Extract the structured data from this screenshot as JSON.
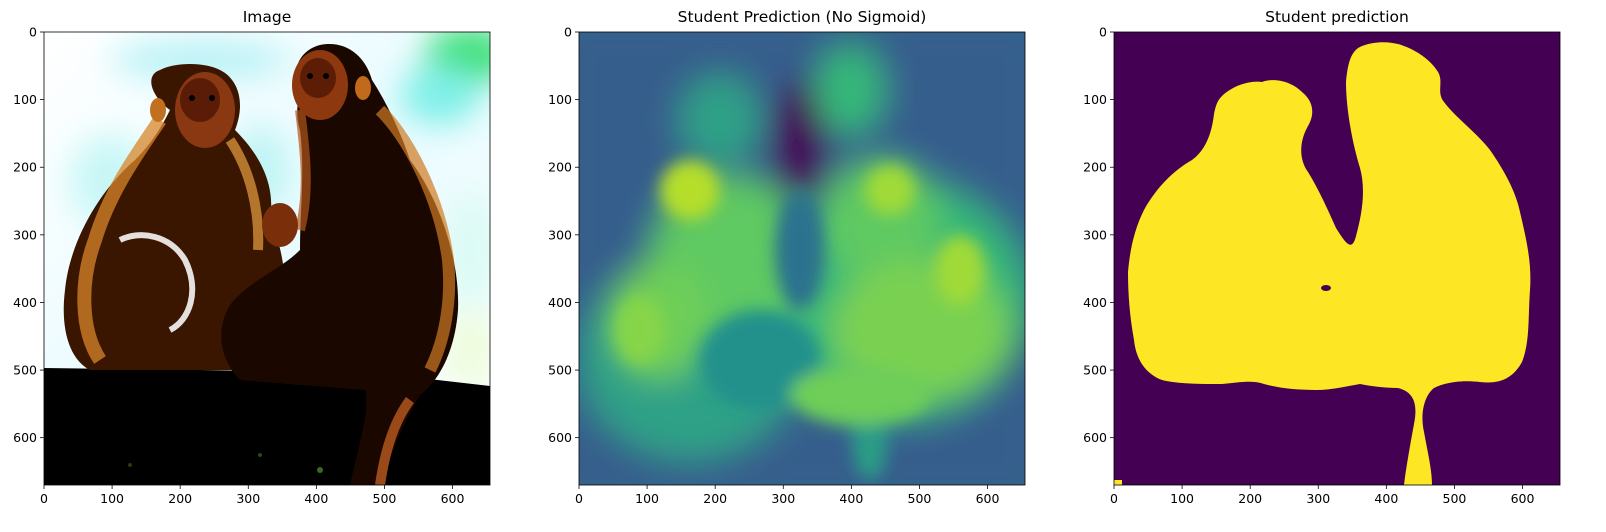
{
  "chart_data": [
    {
      "type": "image",
      "title": "Image",
      "xlim": [
        0,
        655
      ],
      "ylim": [
        670,
        0
      ],
      "xticks": [
        0,
        100,
        200,
        300,
        400,
        500,
        600
      ],
      "yticks": [
        0,
        100,
        200,
        300,
        400,
        500,
        600
      ],
      "content": "photo of two monkeys sitting on a ledge, high contrast"
    },
    {
      "type": "heatmap",
      "title": "Student Prediction (No Sigmoid)",
      "xlim": [
        0,
        655
      ],
      "ylim": [
        670,
        0
      ],
      "xticks": [
        0,
        100,
        200,
        300,
        400,
        500,
        600
      ],
      "yticks": [
        0,
        100,
        200,
        300,
        400,
        500,
        600
      ],
      "colormap": "viridis"
    },
    {
      "type": "heatmap",
      "title": "Student prediction",
      "xlim": [
        0,
        655
      ],
      "ylim": [
        670,
        0
      ],
      "xticks": [
        0,
        100,
        200,
        300,
        400,
        500,
        600
      ],
      "yticks": [
        0,
        100,
        200,
        300,
        400,
        500,
        600
      ],
      "colormap": "binary mask (viridis)"
    }
  ],
  "colors": {
    "viridis_low": "#440154",
    "viridis_mid": "#21918c",
    "viridis_high": "#fde725"
  }
}
